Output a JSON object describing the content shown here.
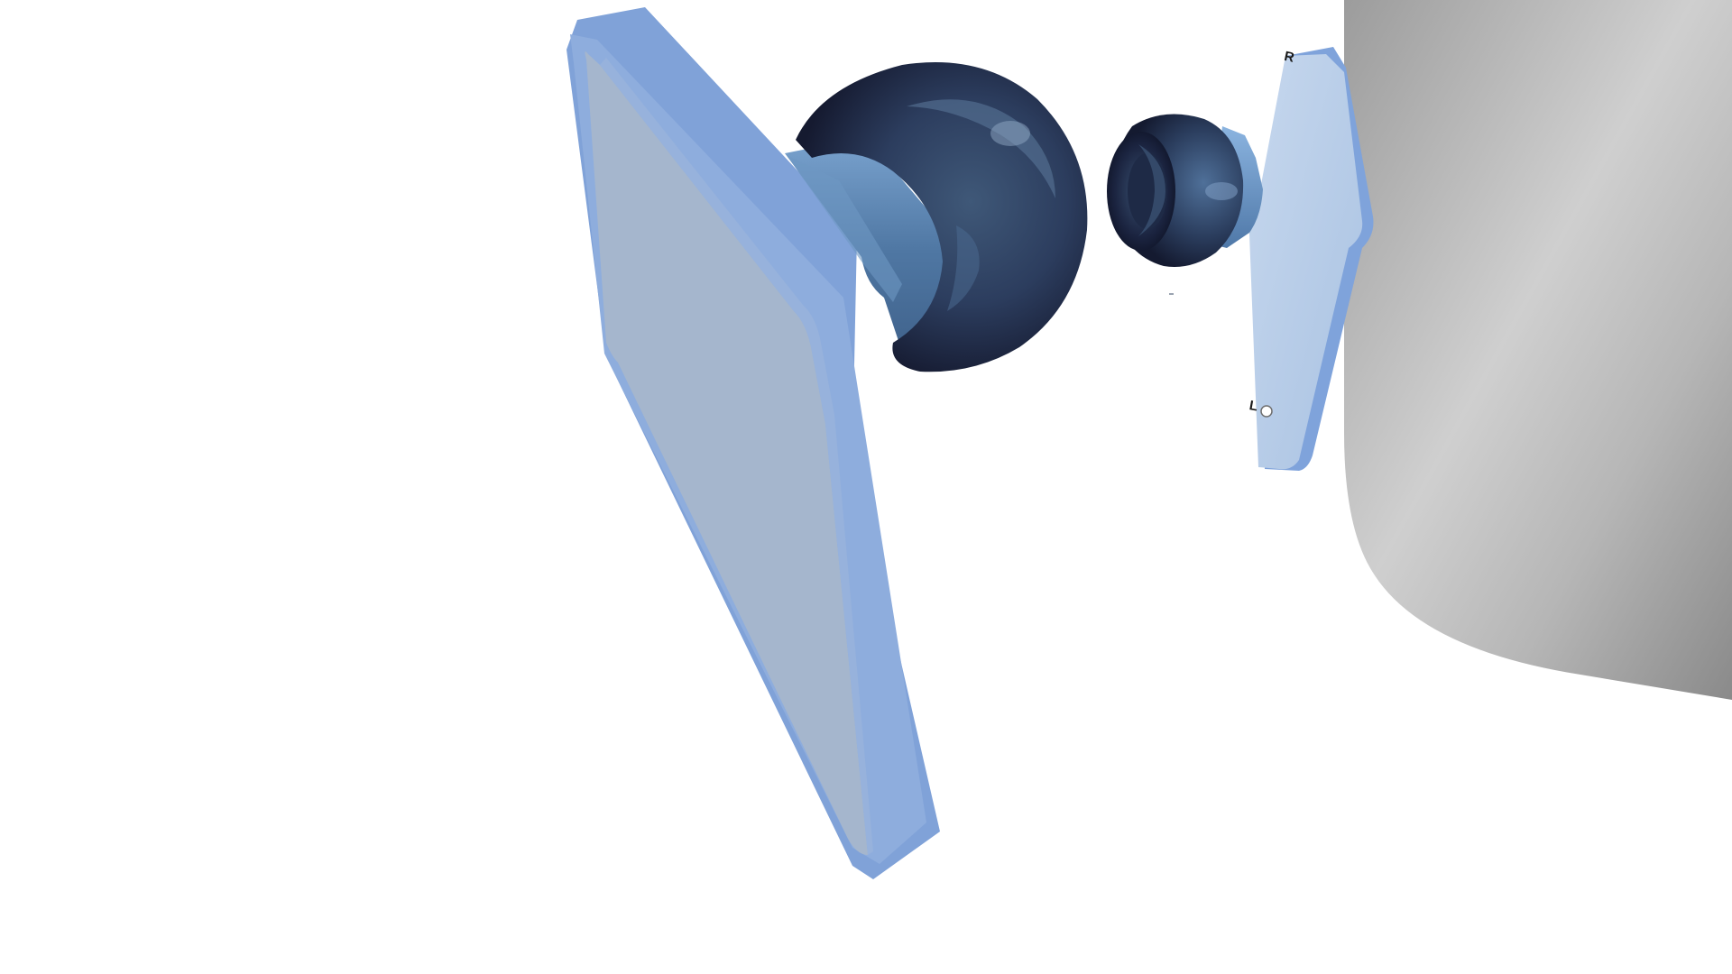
{
  "scene": {
    "markings": {
      "right_side": "R",
      "left_side": "L"
    }
  },
  "colors": {
    "background": "#ffffff",
    "panel_face": "#a3b4cc",
    "panel_edge": "#7b9ed6",
    "panel_rim": "#90acd9",
    "tip_dark": "#232a44",
    "tip_mid": "#3a5270",
    "neck": "#5b82ac",
    "housing_light": "#d8d8d8",
    "housing_dark": "#8f8f8f"
  }
}
